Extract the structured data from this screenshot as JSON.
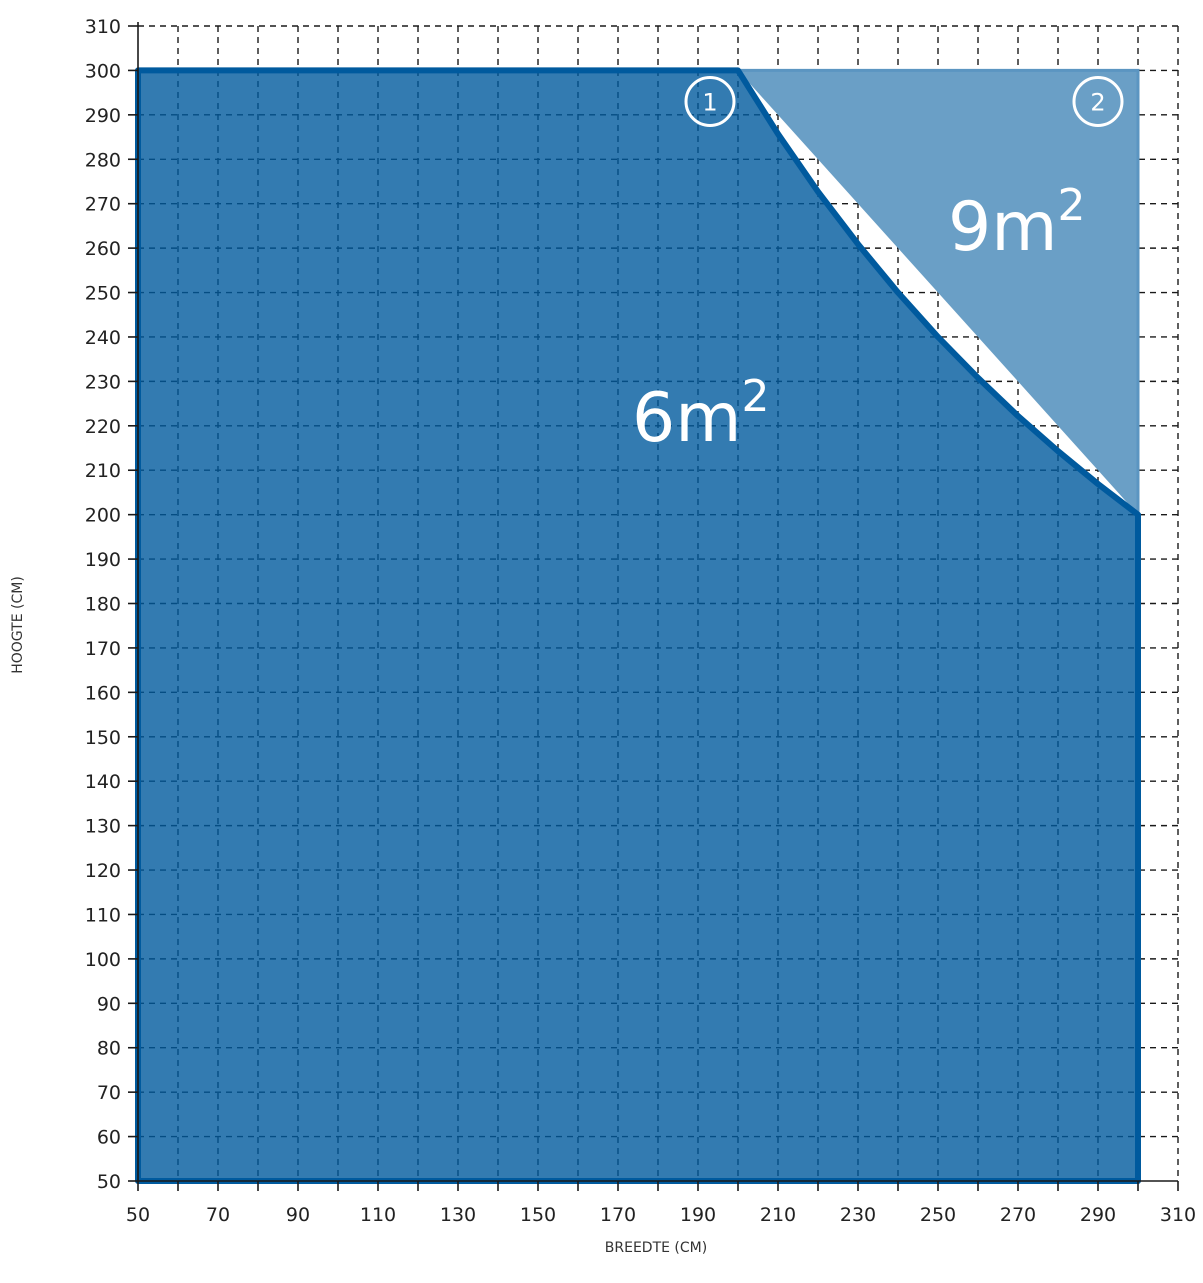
{
  "chart_data": {
    "type": "area",
    "xlabel": "BREEDTE (CM)",
    "ylabel": "HOOGTE (CM)",
    "xlim": [
      50,
      310
    ],
    "ylim": [
      50,
      310
    ],
    "x_ticks": [
      50,
      70,
      90,
      110,
      130,
      150,
      170,
      190,
      210,
      230,
      250,
      270,
      290,
      310
    ],
    "y_ticks": [
      50,
      60,
      70,
      80,
      90,
      100,
      110,
      120,
      130,
      140,
      150,
      160,
      170,
      180,
      190,
      200,
      210,
      220,
      230,
      240,
      250,
      260,
      270,
      280,
      290,
      300,
      310
    ],
    "grid": true,
    "series": [
      {
        "marker": "1",
        "label": "6m²",
        "label_base": "6m",
        "label_sup": "2",
        "color": "#005a9e",
        "boundary": [
          [
            50,
            50
          ],
          [
            50,
            300
          ],
          [
            200,
            300
          ],
          [
            210,
            285.7
          ],
          [
            220,
            272.7
          ],
          [
            230,
            260.9
          ],
          [
            240,
            250
          ],
          [
            250,
            240
          ],
          [
            260,
            230.8
          ],
          [
            270,
            222.2
          ],
          [
            280,
            214.3
          ],
          [
            290,
            206.9
          ],
          [
            300,
            200
          ],
          [
            300,
            50
          ]
        ]
      },
      {
        "marker": "2",
        "label": "9m²",
        "label_base": "9m",
        "label_sup": "2",
        "color": "#6a9fc6",
        "boundary": [
          [
            200,
            300
          ],
          [
            300,
            300
          ],
          [
            300,
            200
          ]
        ]
      }
    ]
  }
}
